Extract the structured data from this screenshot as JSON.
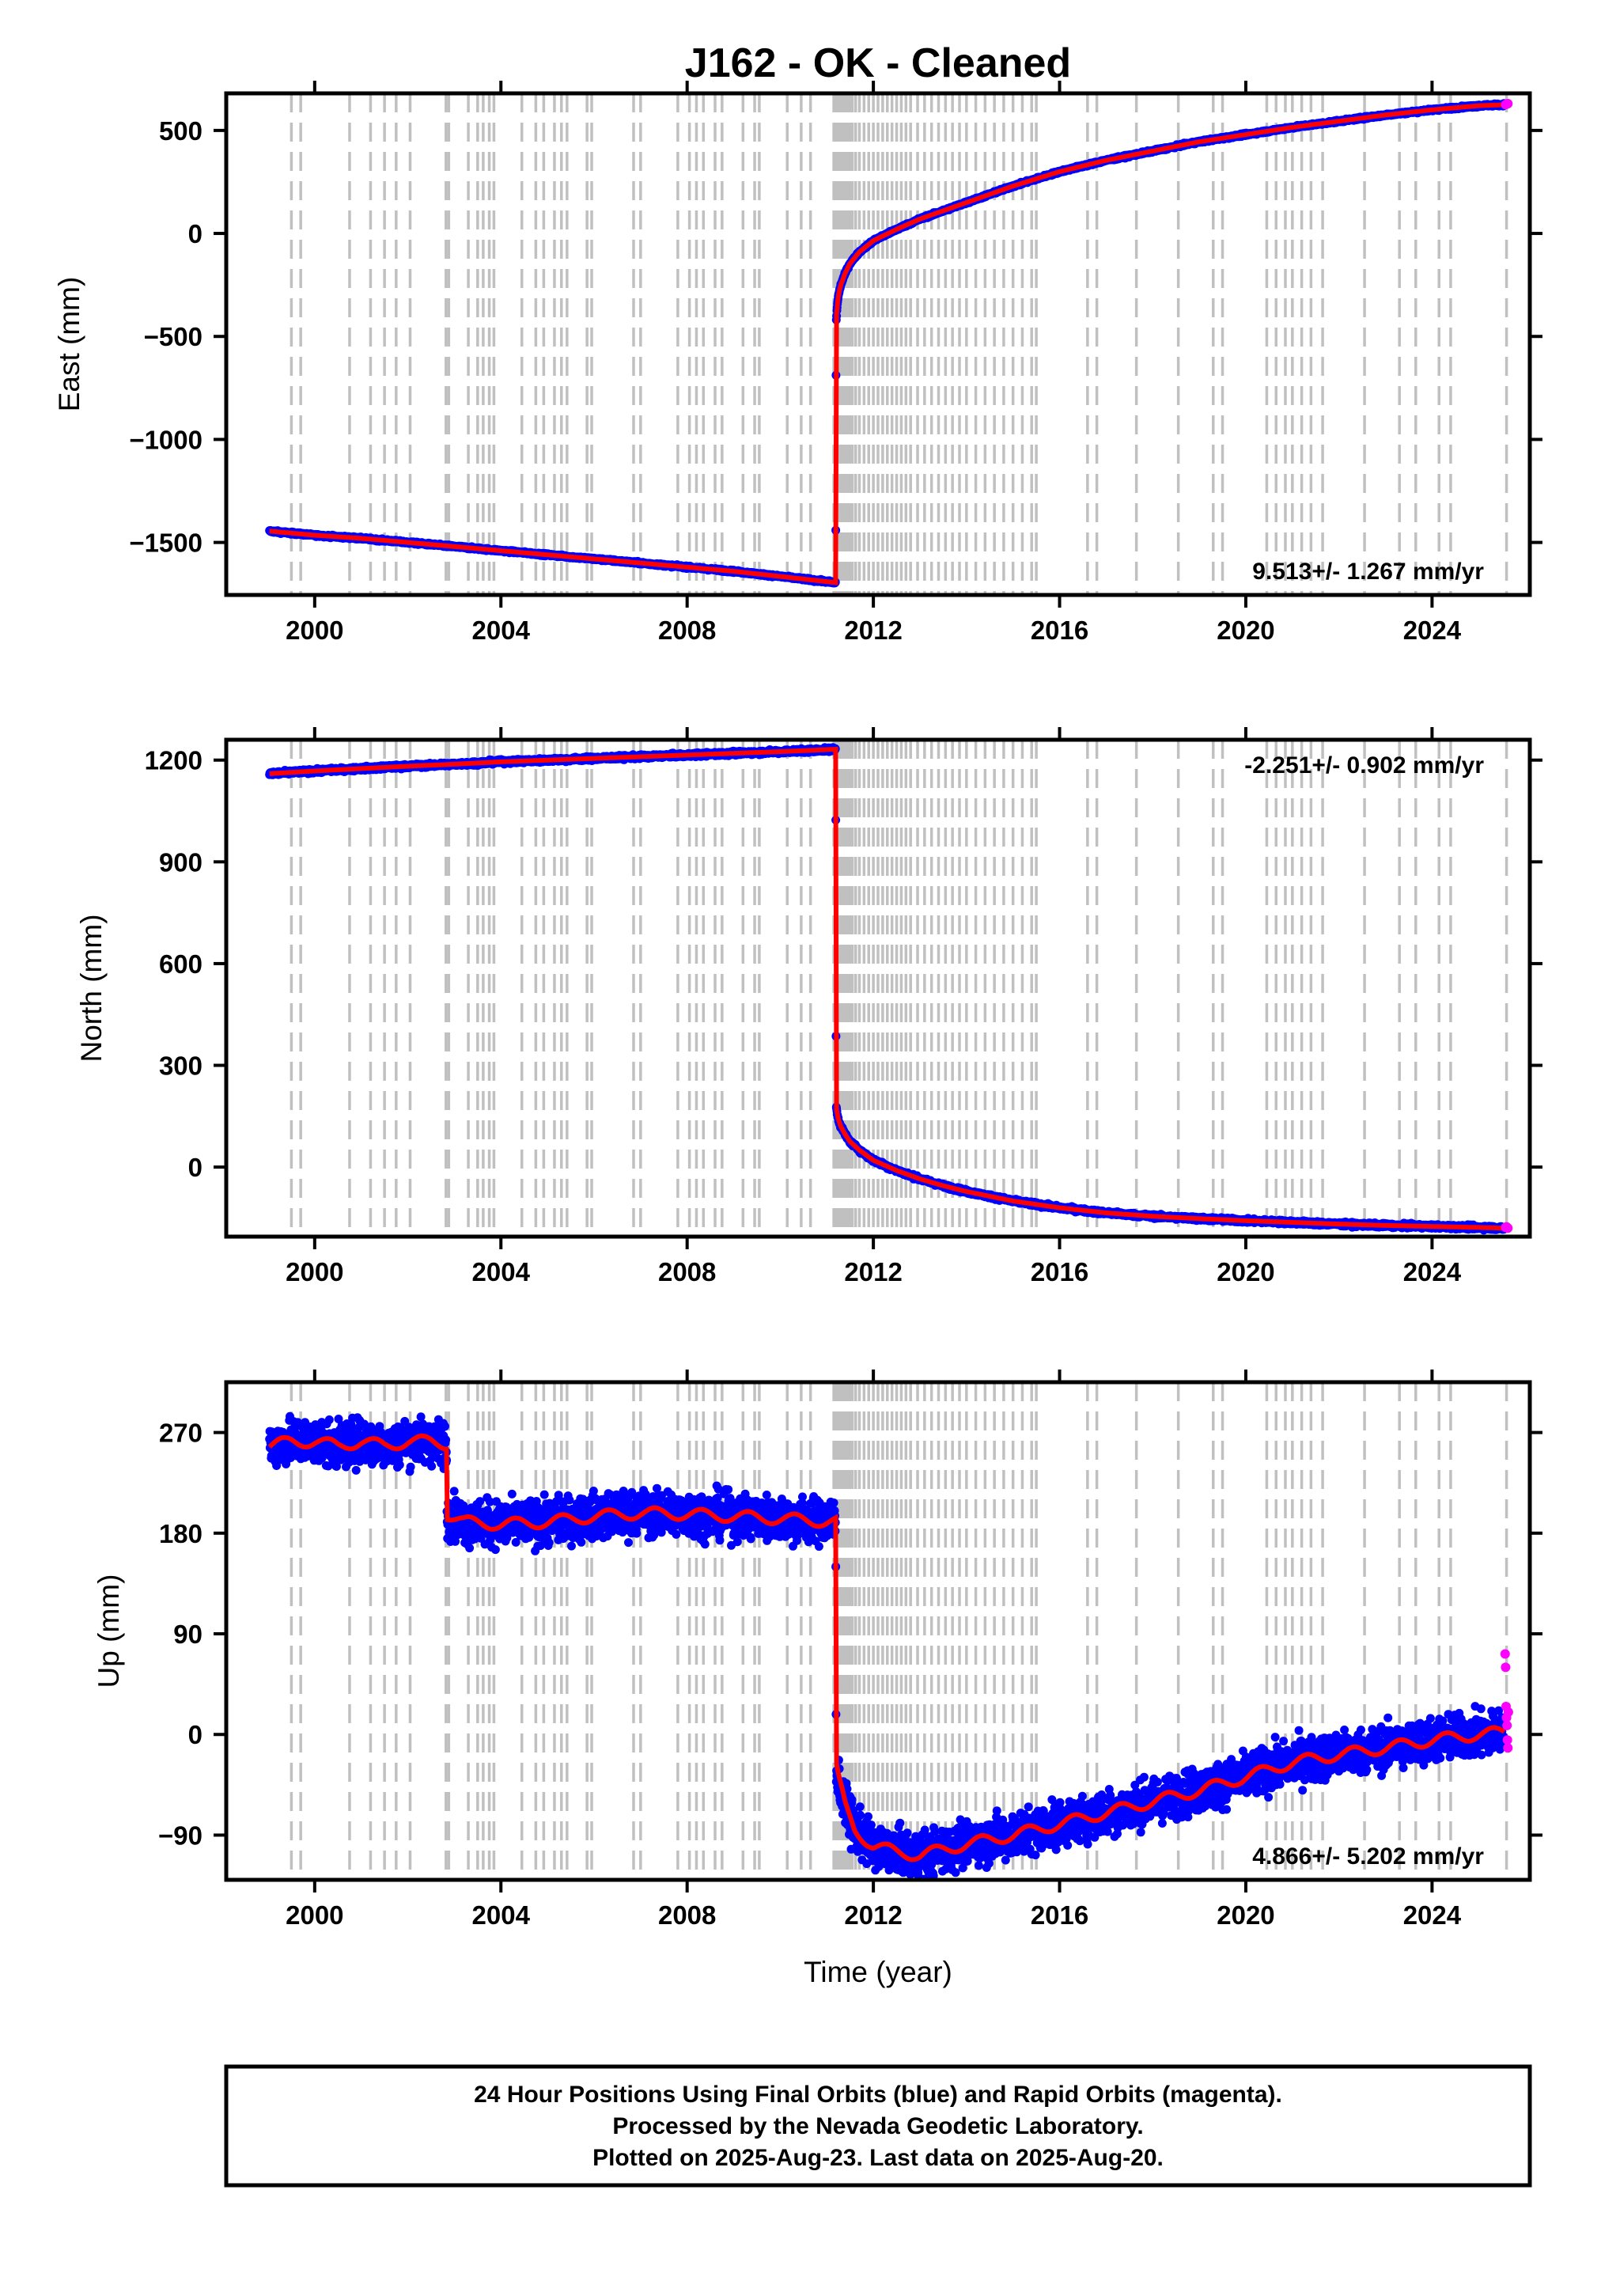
{
  "chart_data": {
    "type": "scatter",
    "title": "J162  - OK - Cleaned",
    "xlabel": "Time (year)",
    "xlim": [
      1998.1,
      2026.1
    ],
    "xticks": [
      2000,
      2004,
      2008,
      2012,
      2016,
      2020,
      2024
    ],
    "colors": {
      "final": "#0000ff",
      "rapid": "#ff00ff",
      "model": "#ff0000",
      "events": "#c0c0c0"
    },
    "event_lines": [
      1999.5,
      1999.7,
      2000.75,
      2001.2,
      2001.5,
      2001.75,
      2002.05,
      2002.82,
      2002.88,
      2003.3,
      2003.5,
      2003.62,
      2003.75,
      2003.85,
      2004.45,
      2004.75,
      2004.92,
      2005.15,
      2005.3,
      2005.42,
      2005.85,
      2005.95,
      2006.85,
      2007.0,
      2007.8,
      2008.05,
      2008.2,
      2008.35,
      2008.6,
      2008.75,
      2009.2,
      2009.45,
      2009.55,
      2010.15,
      2010.45,
      2010.65,
      2011.15,
      2011.2,
      2011.25,
      2011.3,
      2011.35,
      2011.4,
      2011.45,
      2011.5,
      2011.55,
      2011.62,
      2011.7,
      2011.8,
      2011.9,
      2012.0,
      2012.1,
      2012.2,
      2012.3,
      2012.4,
      2012.5,
      2012.6,
      2012.7,
      2012.8,
      2012.95,
      2013.1,
      2013.25,
      2013.4,
      2013.55,
      2013.7,
      2013.85,
      2014.0,
      2014.2,
      2014.4,
      2014.6,
      2014.8,
      2015.0,
      2015.2,
      2015.4,
      2015.5,
      2016.6,
      2016.8,
      2017.65,
      2018.55,
      2019.3,
      2019.5,
      2020.45,
      2020.65,
      2020.85,
      2021.0,
      2021.2,
      2021.4,
      2021.65,
      2022.55,
      2023.3,
      2023.65,
      2024.15,
      2024.4,
      2025.6
    ],
    "panels": [
      {
        "id": "east",
        "ylabel": "East (mm)",
        "ylim": [
          -1755,
          680
        ],
        "yticks": [
          500,
          0,
          -500,
          -1000,
          -1500
        ],
        "ytick_labels": [
          "500",
          "0",
          "−500",
          "−1000",
          "−1500"
        ],
        "rate_text": "9.513+/- 1.267 mm/yr",
        "rate_position": "bottom-right",
        "noise": 4,
        "series": [
          {
            "name": "Final Orbits",
            "x": [
              1999.03,
              2000.0,
              2001.0,
              2002.0,
              2003.0,
              2004.0,
              2005.0,
              2006.0,
              2007.0,
              2008.0,
              2009.0,
              2010.0,
              2011.19,
              2011.2,
              2011.22,
              2011.25,
              2011.3,
              2011.4,
              2011.5,
              2011.7,
              2012.0,
              2012.5,
              2013.0,
              2013.5,
              2014.0,
              2015.0,
              2016.0,
              2017.0,
              2018.0,
              2019.0,
              2020.0,
              2021.0,
              2022.0,
              2023.0,
              2024.0,
              2025.0,
              2025.55
            ],
            "y": [
              -1445,
              -1465,
              -1480,
              -1500,
              -1520,
              -1540,
              -1560,
              -1580,
              -1600,
              -1620,
              -1640,
              -1665,
              -1695,
              -435,
              -360,
              -300,
              -250,
              -190,
              -145,
              -90,
              -35,
              20,
              70,
              110,
              150,
              230,
              300,
              355,
              400,
              445,
              480,
              515,
              545,
              575,
              600,
              620,
              625
            ]
          },
          {
            "name": "Rapid Orbits",
            "x": [
              2025.58,
              2025.6,
              2025.63
            ],
            "y": [
              625,
              628,
              630
            ]
          }
        ]
      },
      {
        "id": "north",
        "ylabel": "North (mm)",
        "ylim": [
          -205,
          1260
        ],
        "yticks": [
          1200,
          900,
          600,
          300,
          0
        ],
        "ytick_labels": [
          "1200",
          "900",
          "600",
          "300",
          "0"
        ],
        "rate_text": "-2.251+/- 0.902 mm/yr",
        "rate_position": "top-right",
        "noise": 4,
        "series": [
          {
            "name": "Final Orbits",
            "x": [
              1999.03,
              2000.0,
              2001.0,
              2002.0,
              2003.0,
              2004.0,
              2005.0,
              2006.0,
              2007.0,
              2008.0,
              2009.0,
              2010.0,
              2011.19,
              2011.2,
              2011.22,
              2011.25,
              2011.3,
              2011.4,
              2011.5,
              2011.7,
              2012.0,
              2012.5,
              2013.0,
              2013.5,
              2014.0,
              2015.0,
              2016.0,
              2017.0,
              2018.0,
              2019.0,
              2020.0,
              2021.0,
              2022.0,
              2023.0,
              2024.0,
              2025.0,
              2025.55
            ],
            "y": [
              1160,
              1168,
              1175,
              1182,
              1188,
              1195,
              1200,
              1205,
              1210,
              1215,
              1220,
              1225,
              1232,
              180,
              160,
              140,
              120,
              95,
              75,
              50,
              20,
              -10,
              -35,
              -55,
              -72,
              -100,
              -120,
              -135,
              -145,
              -152,
              -158,
              -163,
              -168,
              -172,
              -175,
              -178,
              -180
            ]
          },
          {
            "name": "Rapid Orbits",
            "x": [
              2025.58,
              2025.6,
              2025.63
            ],
            "y": [
              -178,
              -176,
              -180
            ]
          }
        ]
      },
      {
        "id": "up",
        "ylabel": "Up (mm)",
        "ylim": [
          -130,
          315
        ],
        "yticks": [
          270,
          180,
          90,
          0,
          -90
        ],
        "ytick_labels": [
          "270",
          "180",
          "90",
          "0",
          "−90"
        ],
        "rate_text": "4.866+/- 5.202 mm/yr",
        "rate_position": "bottom-right",
        "noise": 14,
        "series": [
          {
            "name": "Final Orbits",
            "x": [
              1999.03,
              1999.5,
              2000.0,
              2000.5,
              2001.0,
              2001.5,
              2002.0,
              2002.5,
              2002.83,
              2002.84,
              2003.2,
              2004.0,
              2005.0,
              2006.0,
              2007.0,
              2008.0,
              2009.0,
              2010.0,
              2011.19,
              2011.2,
              2011.25,
              2011.4,
              2011.6,
              2012.0,
              2012.5,
              2013.0,
              2014.0,
              2015.0,
              2016.0,
              2017.0,
              2018.0,
              2019.0,
              2020.0,
              2021.0,
              2022.0,
              2023.0,
              2024.0,
              2025.0,
              2025.55
            ],
            "y": [
              258,
              262,
              262,
              258,
              262,
              258,
              262,
              262,
              260,
              197,
              190,
              188,
              190,
              195,
              198,
              197,
              195,
              193,
              190,
              -28,
              -40,
              -65,
              -85,
              -100,
              -105,
              -108,
              -98,
              -90,
              -80,
              -70,
              -60,
              -50,
              -38,
              -25,
              -18,
              -12,
              -5,
              0,
              2
            ]
          },
          {
            "name": "Rapid Orbits",
            "x": [
              2025.57,
              2025.58,
              2025.59,
              2025.6,
              2025.61,
              2025.62,
              2025.63,
              2025.64
            ],
            "y": [
              72,
              60,
              25,
              15,
              8,
              -5,
              -12,
              20
            ]
          }
        ]
      }
    ]
  },
  "footnote": [
    "24 Hour Positions Using Final Orbits (blue) and Rapid Orbits (magenta).",
    "Processed by the Nevada Geodetic Laboratory.",
    "Plotted on 2025-Aug-23. Last data on 2025-Aug-20."
  ]
}
